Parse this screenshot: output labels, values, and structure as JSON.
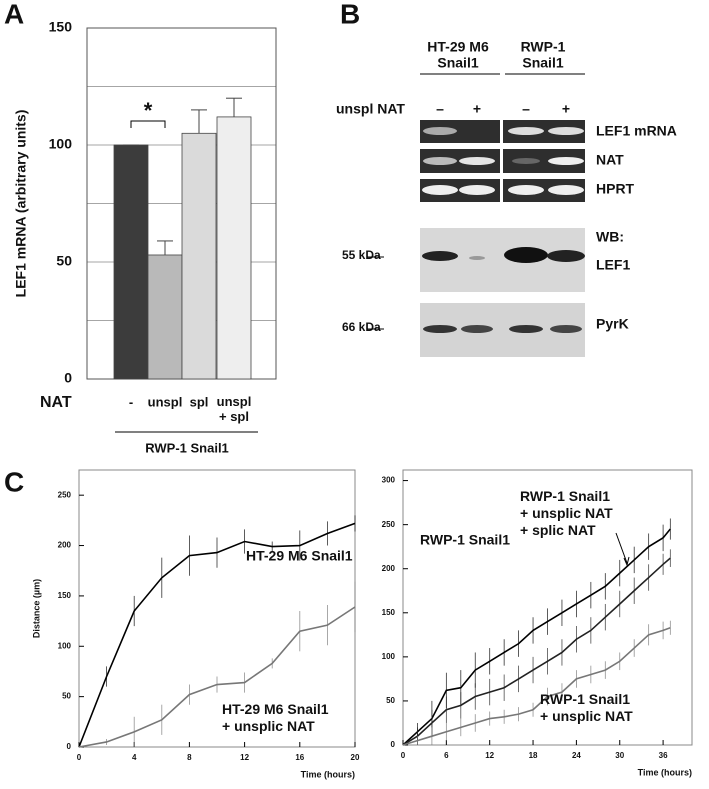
{
  "panel_labels": [
    "A",
    "B",
    "C"
  ],
  "blot": {
    "groups": [
      [
        "HT-29 M6",
        "Snail1"
      ],
      [
        "RWP-1",
        "Snail1"
      ]
    ],
    "row_label": "unspl NAT",
    "lanes": [
      "–",
      "+",
      "–",
      "+"
    ],
    "pcr_rows": [
      "LEF1 mRNA",
      "NAT",
      "HPRT"
    ],
    "wb_marker": "55 kDa",
    "wb_label": [
      "WB:",
      "LEF1"
    ],
    "loading_marker": "66 kDa",
    "loading_label": "PyrK"
  },
  "chart_data": [
    {
      "type": "bar",
      "ylabel": "LEF1 mRNA (arbitrary units)",
      "categories": [
        "-",
        "unspl",
        "spl",
        "unspl\n+ spl"
      ],
      "values": [
        100,
        53,
        105,
        112
      ],
      "errors": [
        0,
        6,
        10,
        8
      ],
      "colors": [
        "#3c3c3c",
        "#b9b9b9",
        "#dadada",
        "#eeeeee"
      ],
      "ylim": [
        0,
        150
      ],
      "yticks": [
        0,
        50,
        100,
        150
      ],
      "minor_yticks": [
        25,
        75,
        125
      ],
      "grid": true,
      "x_row_label": "NAT",
      "group_label": "RWP-1 Snail1",
      "annotation": "*"
    },
    {
      "type": "line",
      "xlabel": "Time (hours)",
      "ylabel": "Distance (µm)",
      "xlim": [
        0,
        20
      ],
      "xticks": [
        0,
        4,
        8,
        12,
        16,
        20
      ],
      "ylim": [
        0,
        275
      ],
      "yticks": [
        0,
        50,
        100,
        150,
        200,
        250
      ],
      "x": [
        0,
        2,
        4,
        6,
        8,
        10,
        12,
        14,
        16,
        18,
        20
      ],
      "series": [
        {
          "name": "HT-29 M6 Snail1",
          "color": "#000000",
          "values": [
            0,
            70,
            135,
            168,
            190,
            193,
            204,
            199,
            200,
            212,
            222
          ],
          "errors": [
            0,
            10,
            15,
            20,
            20,
            15,
            12,
            5,
            15,
            12,
            8
          ]
        },
        {
          "name": "HT-29 M6 Snail1\n+ unsplic NAT",
          "color": "#777777",
          "values": [
            0,
            5,
            15,
            27,
            52,
            62,
            64,
            83,
            115,
            121,
            139
          ],
          "errors": [
            0,
            3,
            15,
            15,
            10,
            8,
            10,
            5,
            20,
            20,
            25
          ]
        }
      ]
    },
    {
      "type": "line",
      "xlabel": "Time (hours)",
      "xlim": [
        0,
        40
      ],
      "xticks": [
        0,
        6,
        12,
        18,
        24,
        30,
        36
      ],
      "ylim": [
        0,
        312
      ],
      "yticks": [
        0,
        50,
        100,
        150,
        200,
        250,
        300
      ],
      "x": [
        0,
        2,
        4,
        6,
        8,
        10,
        12,
        14,
        16,
        18,
        20,
        22,
        24,
        26,
        28,
        30,
        32,
        34,
        36,
        37
      ],
      "series": [
        {
          "name": "RWP-1 Snail1",
          "color": "#000000",
          "values": [
            0,
            15,
            30,
            62,
            65,
            85,
            95,
            105,
            115,
            130,
            140,
            150,
            160,
            170,
            180,
            195,
            210,
            225,
            235,
            245
          ],
          "errors": [
            0,
            10,
            20,
            20,
            20,
            20,
            15,
            15,
            15,
            15,
            15,
            15,
            15,
            15,
            15,
            15,
            15,
            15,
            15,
            12
          ]
        },
        {
          "name": "RWP-1 Snail1\n+ unsplic NAT\n+ splic NAT",
          "color": "#222222",
          "values": [
            0,
            10,
            25,
            40,
            45,
            55,
            60,
            65,
            75,
            85,
            95,
            105,
            120,
            130,
            145,
            160,
            175,
            190,
            205,
            212
          ],
          "errors": [
            0,
            10,
            15,
            15,
            15,
            15,
            15,
            15,
            15,
            15,
            15,
            15,
            15,
            15,
            15,
            15,
            15,
            15,
            12,
            10
          ]
        },
        {
          "name": "RWP-1 Snail1\n+ unsplic NAT",
          "color": "#777777",
          "values": [
            0,
            5,
            10,
            15,
            20,
            25,
            30,
            32,
            35,
            40,
            55,
            60,
            75,
            80,
            85,
            95,
            110,
            125,
            130,
            133
          ],
          "errors": [
            0,
            5,
            10,
            10,
            10,
            10,
            8,
            8,
            8,
            8,
            10,
            10,
            10,
            10,
            10,
            10,
            10,
            12,
            10,
            8
          ]
        }
      ]
    }
  ]
}
